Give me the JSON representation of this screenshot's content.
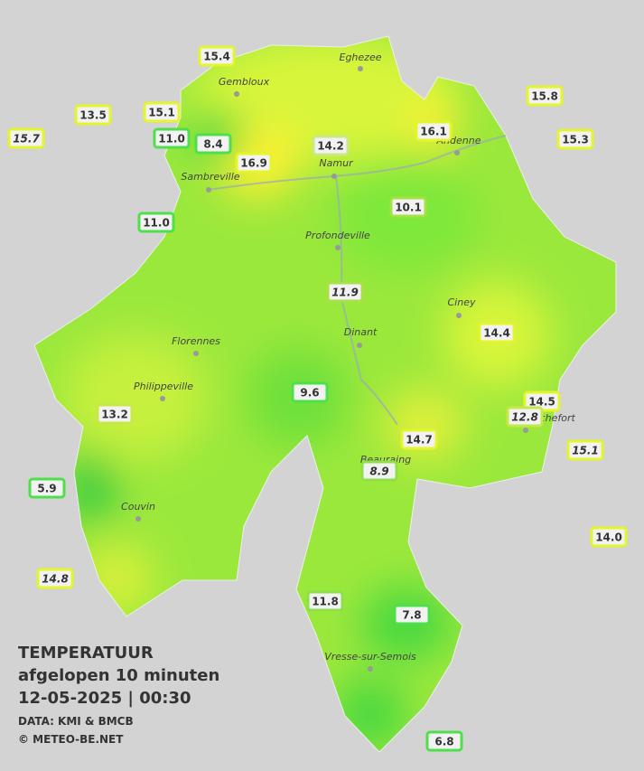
{
  "header": {
    "title": "TEMPERATUUR",
    "subtitle": "afgelopen 10 minuten",
    "datetime": "12-05-2025  |  00:30",
    "source": "DATA: KMI & BMCB",
    "copyright": "© METEO-BE.NET"
  },
  "cities": [
    "Eghezee",
    "Gembloux",
    "Andenne",
    "Namur",
    "Sambreville",
    "Profondeville",
    "Ciney",
    "Dinant",
    "Florennes",
    "Philippeville",
    "Rochefort",
    "Beauraing",
    "Couvin",
    "Vresse-sur-Semois"
  ],
  "stations": [
    "15.4",
    "13.5",
    "15.1",
    "15.7",
    "11.0",
    "8.4",
    "16.9",
    "14.2",
    "16.1",
    "15.8",
    "15.3",
    "11.0",
    "10.1",
    "11.9",
    "14.4",
    "9.6",
    "14.5",
    "12.8",
    "13.2",
    "14.7",
    "15.1",
    "8.9",
    "5.9",
    "14.0",
    "14.8",
    "11.8",
    "7.8",
    "6.8"
  ]
}
